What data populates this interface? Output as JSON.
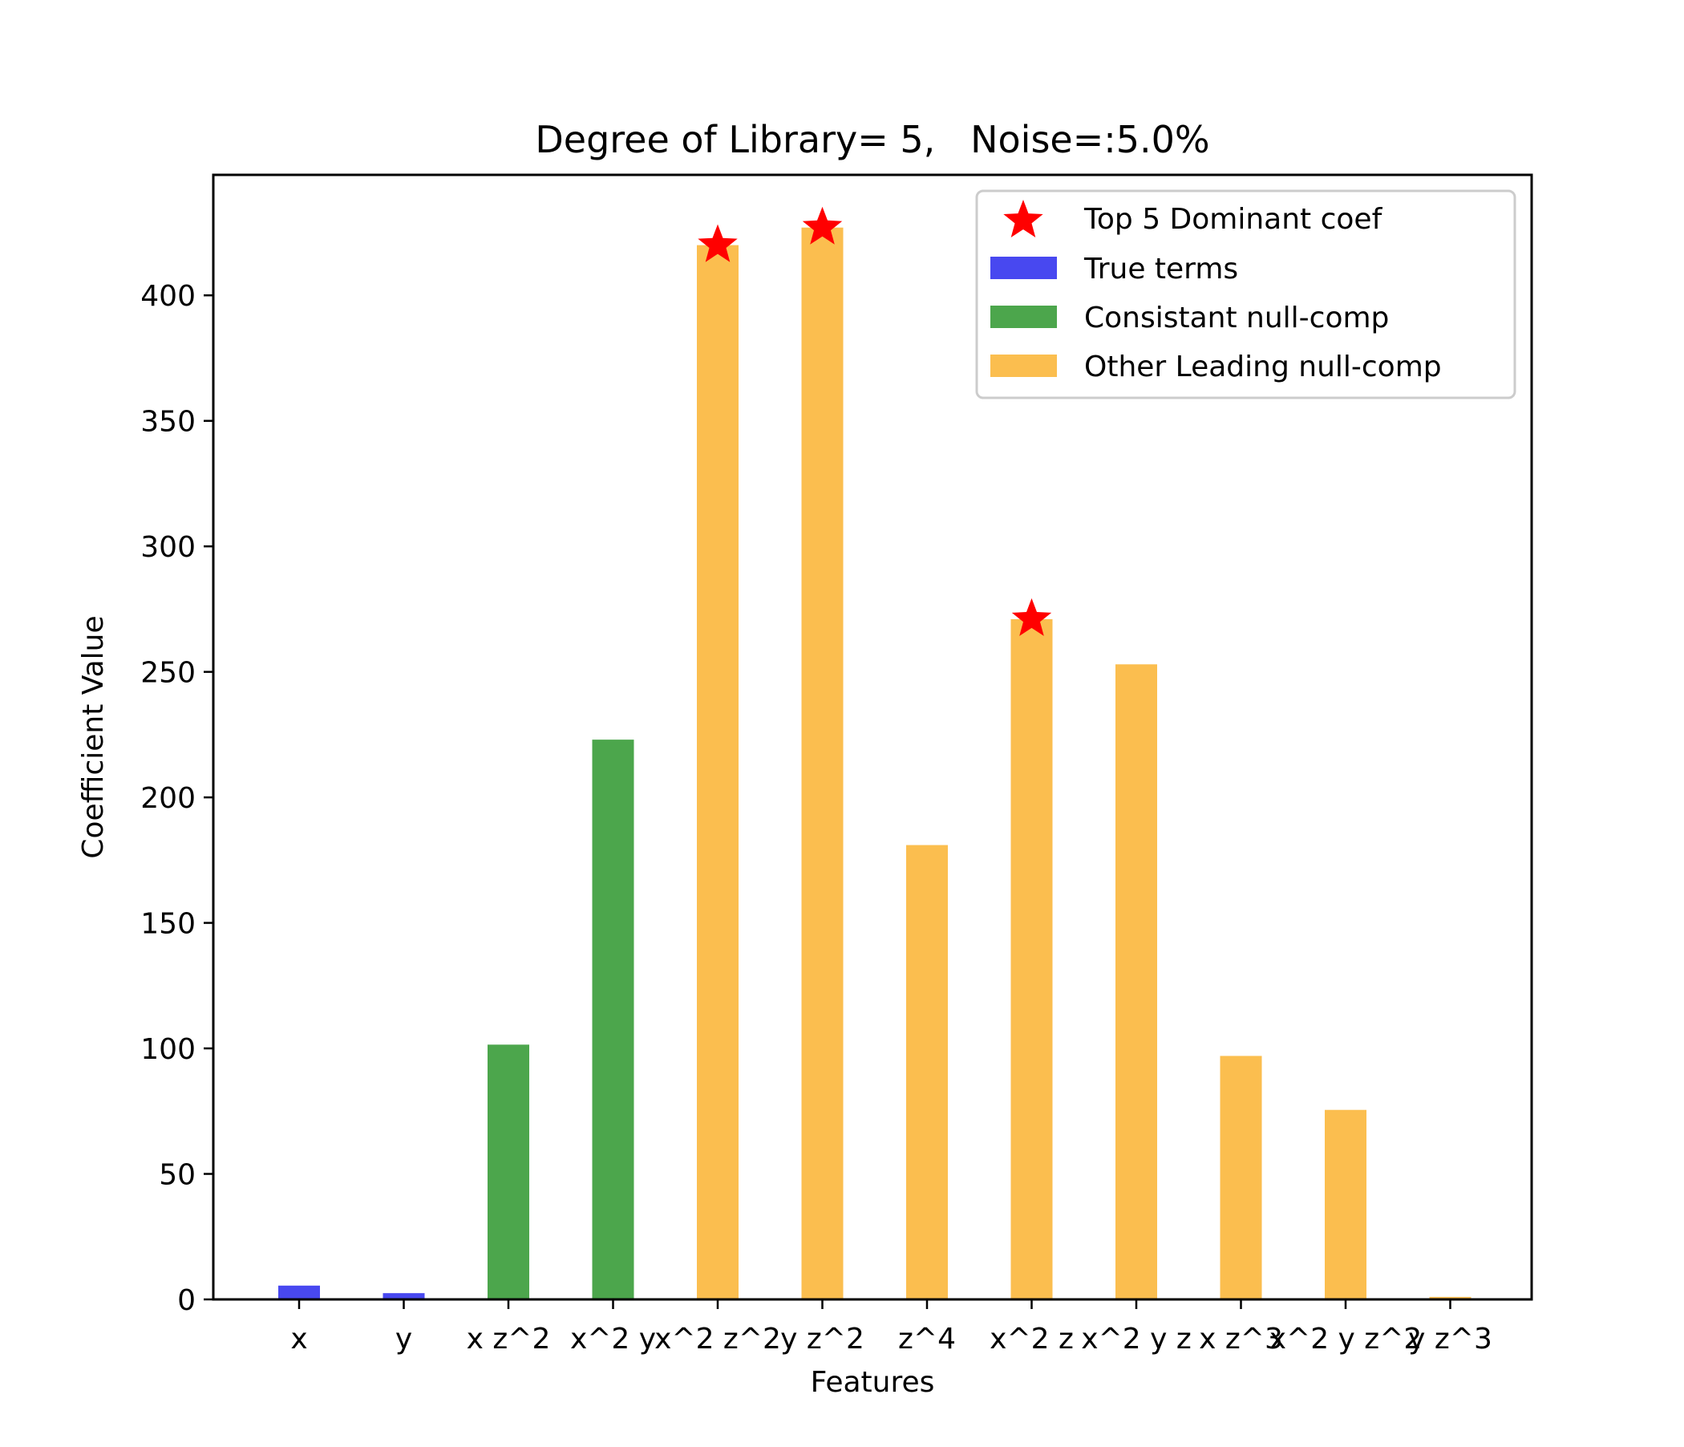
{
  "chart_data": {
    "type": "bar",
    "title": "Degree of Library= 5,   Noise=:5.0%",
    "xlabel": "Features",
    "ylabel": "Coefficient Value",
    "ylim": [
      0,
      448
    ],
    "yticks": [
      0,
      50,
      100,
      150,
      200,
      250,
      300,
      350,
      400
    ],
    "grid": false,
    "legend_position": "top-right",
    "categories": [
      "x",
      "y",
      "x z^2",
      "x^2 y",
      "x^2 z^2",
      "y z^2",
      "z^4",
      "x^2 z",
      "x^2 y z",
      "x z^3",
      "x^2 y z^2",
      "y z^3"
    ],
    "series": [
      {
        "name": "True terms",
        "color": "#4848f0",
        "values": [
          5.5,
          2.5,
          null,
          null,
          null,
          null,
          null,
          null,
          null,
          null,
          null,
          null
        ]
      },
      {
        "name": "Consistant null-comp",
        "color": "#4ca64c",
        "values": [
          null,
          null,
          101.5,
          223,
          null,
          null,
          null,
          null,
          null,
          null,
          null,
          null
        ]
      },
      {
        "name": "Other Leading null-comp",
        "color": "#fbbe4f",
        "values": [
          null,
          null,
          null,
          null,
          420,
          427,
          181,
          271,
          253,
          97,
          75.5,
          1
        ]
      }
    ],
    "markers": {
      "name": "Top 5 Dominant coef",
      "color": "#ff0000",
      "symbol": "star",
      "points": [
        {
          "category": "x^2 z^2",
          "value": 420
        },
        {
          "category": "y z^2",
          "value": 427
        },
        {
          "category": "x^2 z",
          "value": 271
        }
      ]
    }
  }
}
